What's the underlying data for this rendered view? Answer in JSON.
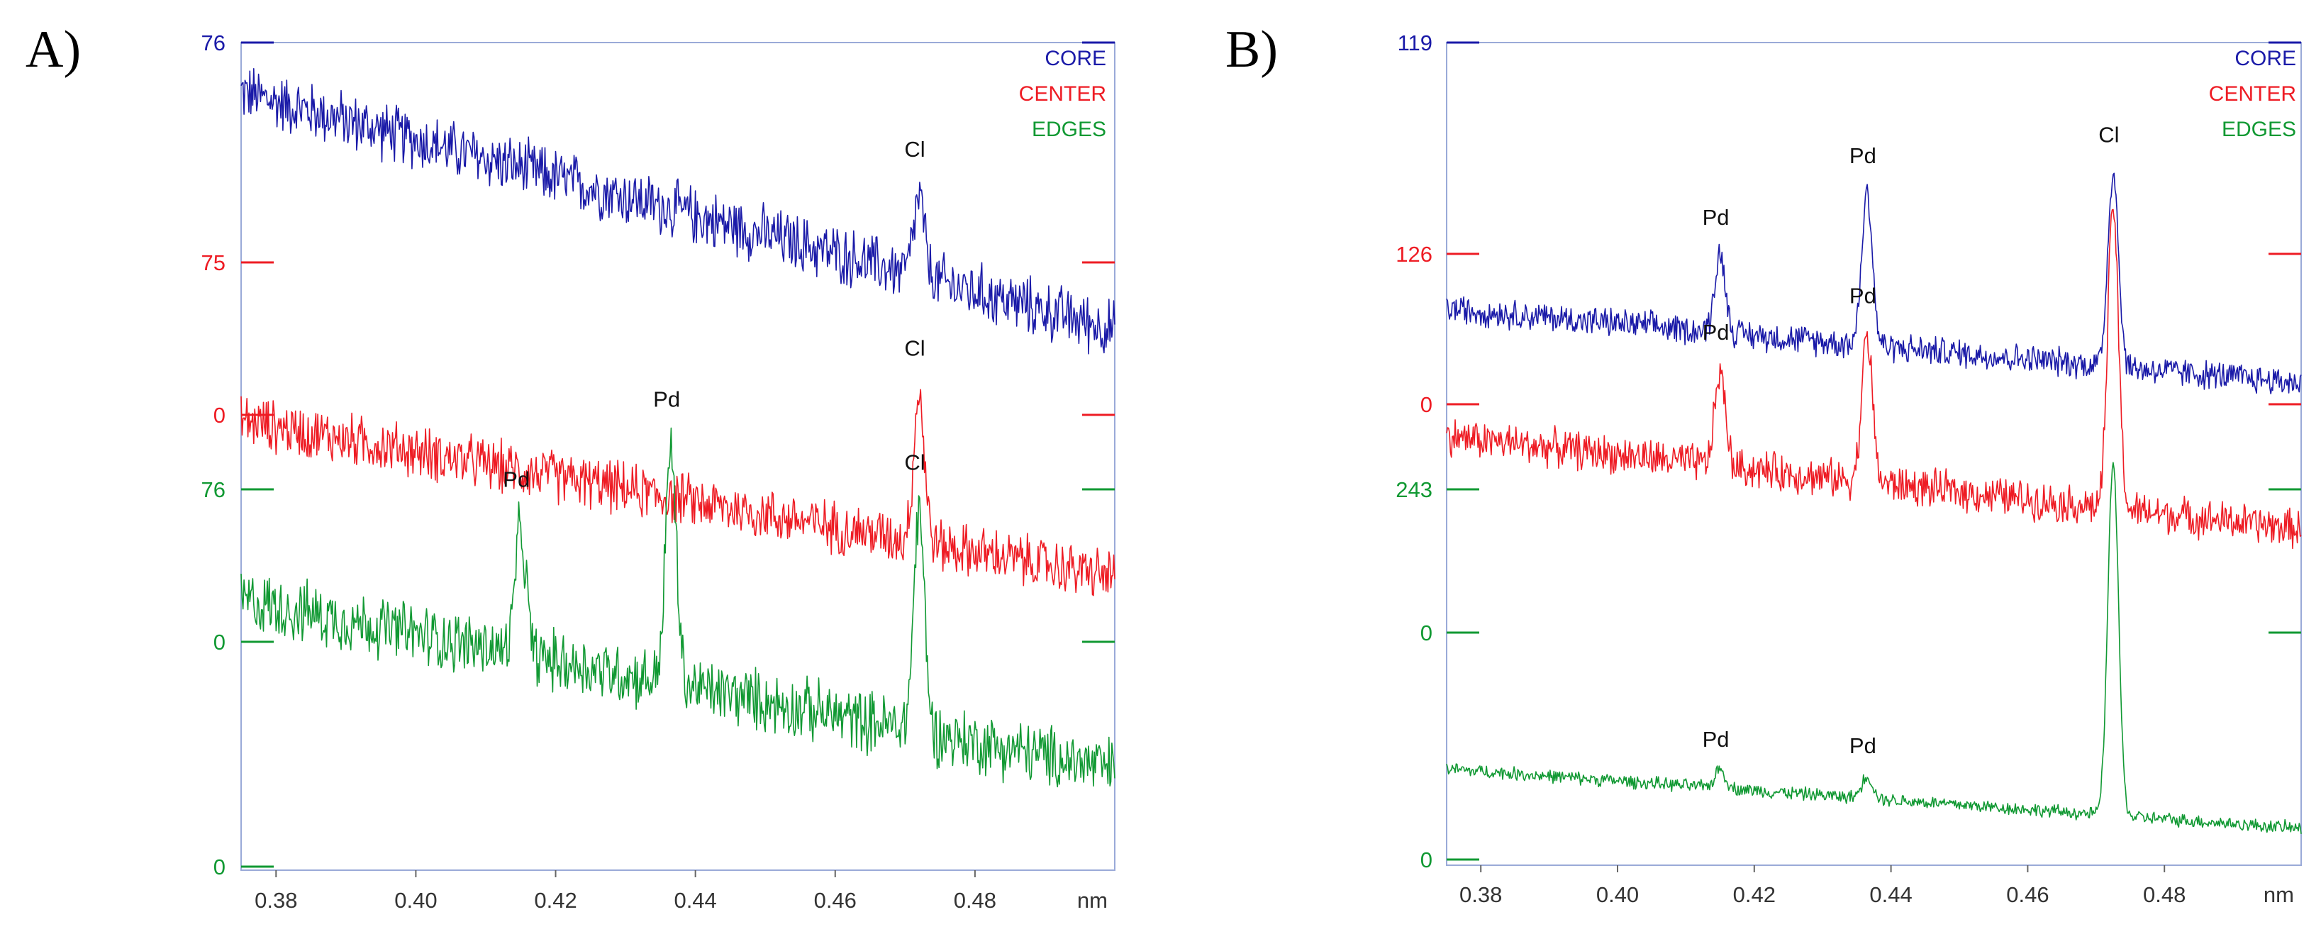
{
  "panels": {
    "a": {
      "label": "A)"
    },
    "b": {
      "label": "B)"
    }
  },
  "colors": {
    "core": "#1a1aa8",
    "center": "#ee1c24",
    "edges": "#119933",
    "axis": "#4a6fcf"
  },
  "chart_data": [
    {
      "type": "line",
      "panel": "A)",
      "xlabel": "nm",
      "xlim": [
        0.375,
        0.5
      ],
      "xticks": [
        "0.38",
        "0.40",
        "0.42",
        "0.44",
        "0.46",
        "0.48"
      ],
      "legend": [
        "CORE",
        "CENTER",
        "EDGES"
      ],
      "legend_position": "top-right",
      "series": [
        {
          "name": "CORE",
          "axis_top": "76",
          "axis_bottom": "",
          "start": 0.86,
          "end": 0.19,
          "noise": 0.07,
          "peaks": [
            {
              "x": 0.472,
              "height": 0.22,
              "label": "Cl"
            }
          ]
        },
        {
          "name": "CENTER",
          "axis_top": "75",
          "axis_bottom": "0",
          "start": 0.66,
          "end": 0.17,
          "noise": 0.07,
          "peaks": [
            {
              "x": 0.472,
              "height": 0.46,
              "label": "Cl"
            }
          ]
        },
        {
          "name": "EDGES",
          "axis_top": "76",
          "axis_bottom": "0",
          "start": 0.63,
          "end": 0.18,
          "noise": 0.07,
          "peaks": [
            {
              "x": 0.415,
              "height": 0.33,
              "label": "Pd"
            },
            {
              "x": 0.4365,
              "height": 0.62,
              "label": "Pd"
            },
            {
              "x": 0.472,
              "height": 0.58,
              "label": "Cl"
            }
          ]
        }
      ]
    },
    {
      "type": "line",
      "panel": "B)",
      "xlabel": "nm",
      "xlim": [
        0.375,
        0.5
      ],
      "xticks": [
        "0.38",
        "0.40",
        "0.42",
        "0.44",
        "0.46",
        "0.48"
      ],
      "legend": [
        "CORE",
        "CENTER",
        "EDGES"
      ],
      "legend_position": "top-right",
      "series": [
        {
          "name": "CORE",
          "axis_top": "119",
          "axis_bottom": "",
          "start": 0.29,
          "end": 0.08,
          "noise": 0.035,
          "peaks": [
            {
              "x": 0.415,
              "height": 0.22,
              "label": "Pd"
            },
            {
              "x": 0.4365,
              "height": 0.43,
              "label": "Pd"
            },
            {
              "x": 0.4725,
              "height": 0.55,
              "label": "Cl"
            }
          ]
        },
        {
          "name": "CENTER",
          "axis_top": "126",
          "axis_bottom": "0",
          "start": 0.43,
          "end": 0.2,
          "noise": 0.04,
          "peaks": [
            {
              "x": 0.415,
              "height": 0.23,
              "label": "Pd"
            },
            {
              "x": 0.4365,
              "height": 0.36,
              "label": "Pd"
            },
            {
              "x": 0.4725,
              "height": 0.75,
              "label": ""
            }
          ]
        },
        {
          "name": "EDGES",
          "axis_top": "243",
          "axis_bottom": "0",
          "start": 0.23,
          "end": 0.07,
          "noise": 0.015,
          "peaks": [
            {
              "x": 0.415,
              "height": 0.05,
              "label": "Pd"
            },
            {
              "x": 0.4365,
              "height": 0.06,
              "label": "Pd"
            },
            {
              "x": 0.4725,
              "height": 0.95,
              "label": ""
            }
          ]
        }
      ]
    }
  ]
}
